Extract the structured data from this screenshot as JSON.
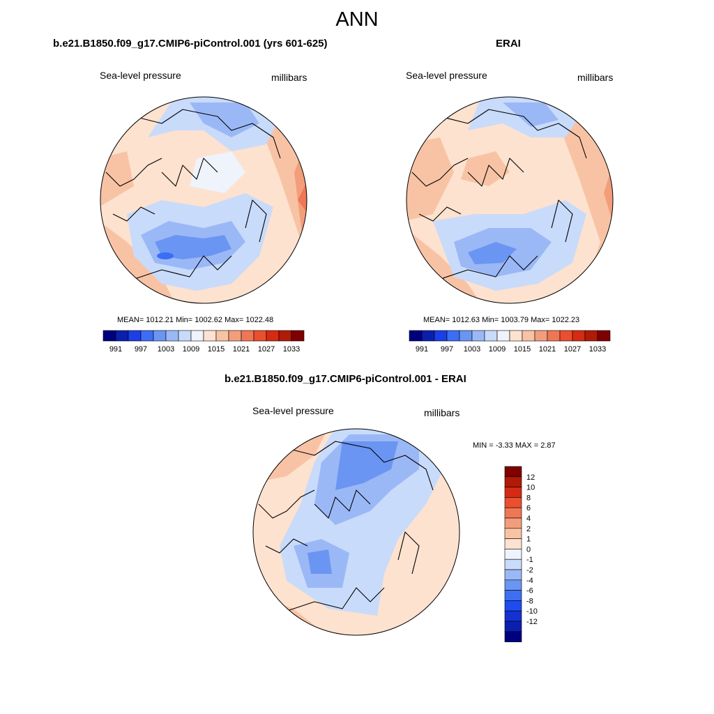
{
  "figure": {
    "title": "ANN",
    "colors": {
      "scale": [
        "#00007f",
        "#0a1fae",
        "#1b3ee6",
        "#3b6ef5",
        "#6a95f2",
        "#9bb8f6",
        "#c8dbfa",
        "#eef3fc",
        "#fde2cf",
        "#f8c3a5",
        "#f39e7a",
        "#ef7755",
        "#ea4f2f",
        "#d62a13",
        "#b11a07",
        "#7f0000"
      ],
      "diff_scale": [
        "#00007f",
        "#0a1fae",
        "#1432d2",
        "#1e4cf0",
        "#3d6ff2",
        "#6a95f2",
        "#9bb8f6",
        "#c8dbfa",
        "#eef3fc",
        "#fde2cf",
        "#f8c3a5",
        "#f39e7a",
        "#ef7755",
        "#ea4f2f",
        "#d62a13",
        "#b11a07",
        "#7f0000"
      ]
    }
  },
  "panels": [
    {
      "title": "b.e21.B1850.f09_g17.CMIP6-piControl.001 (yrs 601-625)",
      "left_label": "Sea-level pressure",
      "right_label": "millibars",
      "stats": "MEAN= 1012.21  Min= 1002.62  Max= 1022.48",
      "colorbar": {
        "labels": [
          "991",
          "997",
          "1003",
          "1009",
          "1015",
          "1021",
          "1027",
          "1033"
        ]
      }
    },
    {
      "title": "ERAI",
      "left_label": "Sea-level pressure",
      "right_label": "millibars",
      "stats": "MEAN= 1012.63  Min= 1003.79  Max= 1022.23",
      "colorbar": {
        "labels": [
          "991",
          "997",
          "1003",
          "1009",
          "1015",
          "1021",
          "1027",
          "1033"
        ]
      }
    },
    {
      "title": "b.e21.B1850.f09_g17.CMIP6-piControl.001 - ERAI",
      "left_label": "Sea-level pressure",
      "right_label": "millibars",
      "stats": "MIN =  -3.33 MAX =   2.87",
      "colorbar": {
        "labels": [
          "12",
          "10",
          "8",
          "6",
          "4",
          "2",
          "1",
          "0",
          "-1",
          "-2",
          "-4",
          "-6",
          "-8",
          "-10",
          "-12"
        ]
      }
    }
  ]
}
